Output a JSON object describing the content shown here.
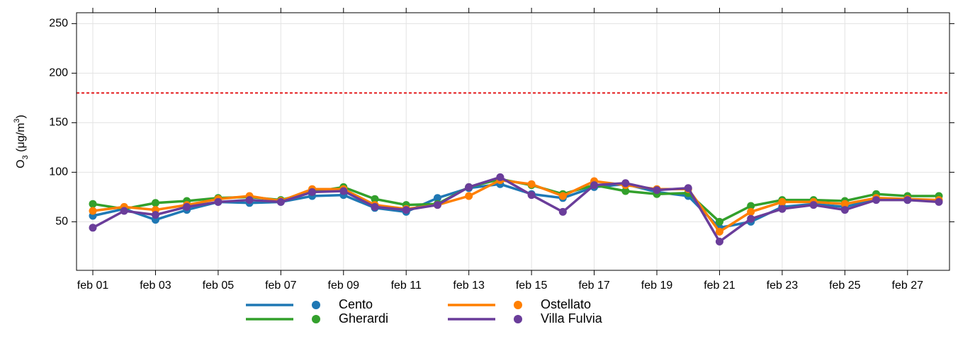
{
  "chart_data": {
    "type": "line",
    "ylabel_parts": [
      "O",
      "3",
      " (μg/m",
      "3",
      ")"
    ],
    "categories": [
      "feb 01",
      null,
      "feb 03",
      null,
      "feb 05",
      null,
      "feb 07",
      null,
      "feb 09",
      null,
      "feb 11",
      null,
      "feb 13",
      null,
      "feb 15",
      null,
      "feb 17",
      null,
      "feb 19",
      null,
      "feb 21",
      null,
      "feb 23",
      null,
      "feb 25",
      null,
      "feb 27",
      null
    ],
    "series": [
      {
        "name": "Cento",
        "color": "#1f78b4",
        "values": [
          56,
          63,
          52,
          62,
          70,
          69,
          70,
          76,
          77,
          64,
          60,
          74,
          84,
          88,
          78,
          74,
          85,
          88,
          80,
          76,
          44,
          50,
          65,
          68,
          65,
          73,
          72,
          71
        ]
      },
      {
        "name": "Gherardi",
        "color": "#33a02c",
        "values": [
          68,
          63,
          69,
          71,
          74,
          75,
          72,
          80,
          85,
          73,
          67,
          68,
          85,
          93,
          87,
          78,
          87,
          81,
          78,
          79,
          50,
          66,
          72,
          72,
          71,
          78,
          76,
          76
        ]
      },
      {
        "name": "Ostellato",
        "color": "#ff7f00",
        "values": [
          61,
          65,
          62,
          67,
          73,
          76,
          71,
          83,
          83,
          67,
          63,
          67,
          76,
          92,
          88,
          76,
          91,
          87,
          83,
          83,
          40,
          60,
          70,
          70,
          68,
          74,
          73,
          72
        ]
      },
      {
        "name": "Villa Fulvia",
        "color": "#6a3d9a",
        "values": [
          44,
          61,
          57,
          65,
          70,
          72,
          70,
          80,
          81,
          65,
          62,
          67,
          85,
          95,
          77,
          60,
          87,
          89,
          82,
          84,
          30,
          53,
          63,
          67,
          62,
          72,
          72,
          70
        ]
      }
    ],
    "threshold": 180,
    "threshold_color": "#e41a1c",
    "ylim": [
      1,
      261
    ],
    "yticks": [
      50,
      100,
      150,
      200,
      250
    ],
    "grid": true
  }
}
